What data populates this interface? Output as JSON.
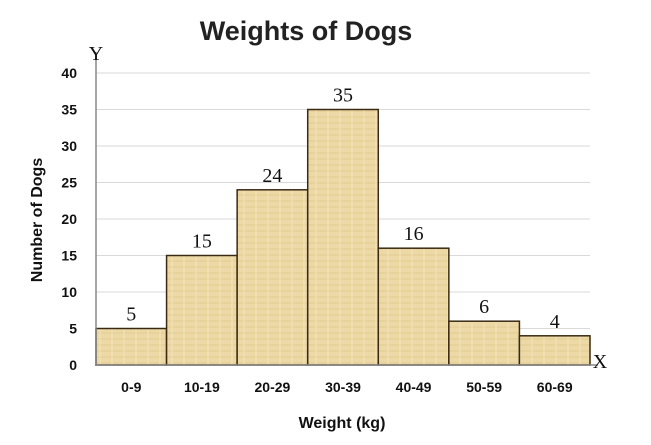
{
  "chart_data": {
    "type": "bar",
    "title": "Weights of Dogs",
    "xlabel": "Weight (kg)",
    "ylabel": "Number  of Dogs",
    "x_axis_letter": "X",
    "y_axis_letter": "Y",
    "categories": [
      "0-9",
      "10-19",
      "20-29",
      "30-39",
      "40-49",
      "50-59",
      "60-69"
    ],
    "values": [
      5,
      15,
      24,
      35,
      16,
      6,
      4
    ],
    "data_labels": [
      "5",
      "15",
      "24",
      "35",
      "16",
      "6",
      "4"
    ],
    "ylim": [
      0,
      40
    ],
    "yticks": [
      "0",
      "5",
      "10",
      "15",
      "20",
      "25",
      "30",
      "35",
      "40"
    ],
    "grid": true,
    "bar_color": "#ecd9a6",
    "bar_edge_color": "#3a2a14"
  }
}
